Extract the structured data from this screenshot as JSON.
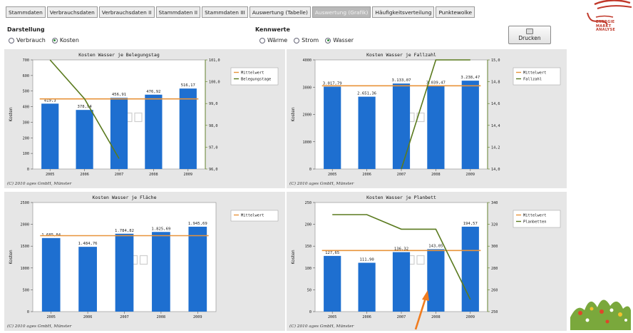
{
  "tabs": [
    {
      "label": "Stammdaten",
      "active": false
    },
    {
      "label": "Verbrauchsdaten",
      "active": false
    },
    {
      "label": "Verbrauchsdaten II",
      "active": false
    },
    {
      "label": "Stammdaten II",
      "active": false
    },
    {
      "label": "Stammdaten III",
      "active": false
    },
    {
      "label": "Auswertung (Tabelle)",
      "active": false
    },
    {
      "label": "Auswertung (Grafik)",
      "active": true
    },
    {
      "label": "Häufigkeitsverteilung",
      "active": false
    },
    {
      "label": "Punktewolke",
      "active": false
    }
  ],
  "logo": {
    "line1": "ENERGIE",
    "line2": "MARKT",
    "line3": "ANALYSE",
    "color": "#c0392b"
  },
  "darstellung": {
    "label": "Darstellung",
    "options": [
      {
        "label": "Verbrauch",
        "selected": false
      },
      {
        "label": "Kosten",
        "selected": true
      }
    ]
  },
  "kennwerte": {
    "label": "Kennwerte",
    "options": [
      {
        "label": "Wärme",
        "selected": false
      },
      {
        "label": "Strom",
        "selected": false
      },
      {
        "label": "Wasser",
        "selected": true
      }
    ]
  },
  "print_button": {
    "label": "Drucken",
    "icon": "printer-icon"
  },
  "colors": {
    "bar": "#1e6fd0",
    "mean": "#e8933a",
    "second": "#5a7a1e",
    "panel": "#e6e6e6"
  },
  "chart_data": [
    {
      "type": "bar",
      "title": "Kosten Wasser je Belegungstag",
      "ylabel": "Kosten",
      "categories": [
        "2005",
        "2006",
        "2007",
        "2008",
        "2009"
      ],
      "series": [
        {
          "values": [
            419.3,
            378.94,
            456.91,
            476.92,
            516.17
          ],
          "labels": [
            "419,3",
            "378,94",
            "456,91",
            "476,92",
            "516,17"
          ]
        }
      ],
      "mean": 450,
      "secondary": {
        "values": [
          101.0,
          99.5,
          97.2,
          null,
          null
        ],
        "ylim": [
          96.8,
          101.0
        ],
        "ticks": [
          "101,0",
          "100,0",
          "99,0",
          "98,0",
          "97,0",
          "96,0"
        ]
      },
      "ylim": [
        0,
        700
      ],
      "yticks": [
        "700",
        "600",
        "500",
        "400",
        "300",
        "200",
        "100",
        "0"
      ],
      "legend": [
        "Mittelwert",
        "Belegungstage"
      ],
      "footer": "(C) 2010 ages GmbH, Münster"
    },
    {
      "type": "bar",
      "title": "Kosten Wasser je Fallzahl",
      "ylabel": "Kosten",
      "categories": [
        "2005",
        "2006",
        "2007",
        "2008",
        "2009"
      ],
      "series": [
        {
          "values": [
            3017.79,
            2651.36,
            3133.07,
            3039.47,
            3238.47
          ],
          "labels": [
            "3.017,79",
            "2.651,36",
            "3.133,07",
            "3.039,47",
            "3.238,47"
          ]
        }
      ],
      "mean": 3050,
      "secondary": {
        "values": [
          null,
          null,
          14.0,
          15.0,
          15.0
        ],
        "ylim": [
          14.0,
          15.0
        ],
        "ticks": [
          "15,0",
          "14,8",
          "14,6",
          "14,4",
          "14,2",
          "14,0"
        ]
      },
      "ylim": [
        0,
        4000
      ],
      "yticks": [
        "4000",
        "3000",
        "2000",
        "1000",
        "0"
      ],
      "legend": [
        "Mittelwert",
        "Fallzahl"
      ],
      "footer": "(C) 2010 ages GmbH, Münster"
    },
    {
      "type": "bar",
      "title": "Kosten Wasser je Fläche",
      "ylabel": "Kosten",
      "categories": [
        "2005",
        "2006",
        "2007",
        "2008",
        "2009"
      ],
      "series": [
        {
          "values": [
            1685.84,
            1484.76,
            1784.82,
            1825.69,
            1945.69
          ],
          "labels": [
            "1.685,84",
            "1.484,76",
            "1.784,82",
            "1.825,69",
            "1.945,69"
          ]
        }
      ],
      "mean": 1740,
      "ylim": [
        0,
        2500
      ],
      "yticks": [
        "2500",
        "2000",
        "1500",
        "1000",
        "500",
        "0"
      ],
      "legend": [
        "Mittelwert"
      ],
      "footer": "(C) 2010 ages GmbH, Münster"
    },
    {
      "type": "bar",
      "title": "Kosten Wasser je Planbett",
      "ylabel": "Kosten",
      "categories": [
        "2005",
        "2006",
        "2007",
        "2008",
        "2009"
      ],
      "series": [
        {
          "values": [
            127.65,
            111.9,
            136.32,
            143.05,
            194.57
          ],
          "labels": [
            "127,65",
            "111,90",
            "136,32",
            "143,05",
            "194,57"
          ]
        }
      ],
      "mean": 140,
      "secondary": {
        "values": [
          330,
          330,
          318,
          318,
          260
        ],
        "ylim": [
          250,
          340
        ],
        "ticks": [
          "340",
          "320",
          "300",
          "280",
          "260",
          "250"
        ]
      },
      "ylim": [
        0,
        250
      ],
      "yticks": [
        "250",
        "200",
        "150",
        "100",
        "50",
        "0"
      ],
      "legend": [
        "Mittelwert",
        "Planbetten"
      ],
      "footer": "(C) 2010 ages GmbH, Münster"
    }
  ]
}
